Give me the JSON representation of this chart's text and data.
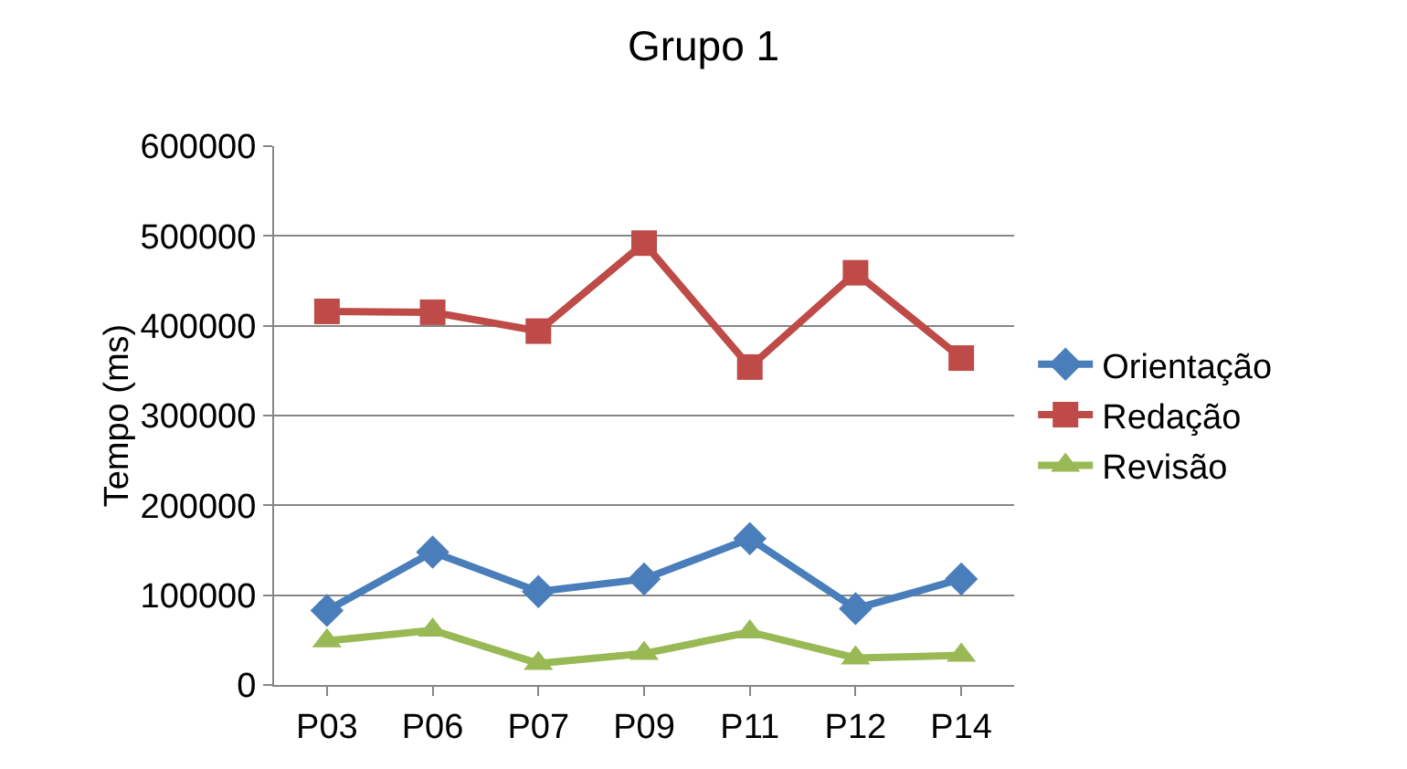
{
  "chart_data": {
    "type": "line",
    "title": "Grupo 1",
    "ylabel": "Tempo (ms)",
    "categories": [
      "P03",
      "P06",
      "P07",
      "P09",
      "P11",
      "P12",
      "P14"
    ],
    "series": [
      {
        "name": "Orientação",
        "color": "#4a7ebb",
        "marker": "diamond",
        "values": [
          83000,
          148000,
          104000,
          118000,
          163000,
          85000,
          118000
        ]
      },
      {
        "name": "Redação",
        "color": "#be4b48",
        "marker": "square",
        "values": [
          416000,
          415000,
          394000,
          492000,
          354000,
          459000,
          364000
        ]
      },
      {
        "name": "Revisão",
        "color": "#98b954",
        "marker": "triangle",
        "values": [
          49000,
          61000,
          24000,
          35000,
          59000,
          30000,
          33000
        ]
      }
    ],
    "ylim": [
      0,
      600000
    ],
    "yticks": [
      0,
      100000,
      200000,
      300000,
      400000,
      500000,
      600000
    ],
    "grid": "y",
    "legend": "right",
    "line_style": "solid"
  }
}
